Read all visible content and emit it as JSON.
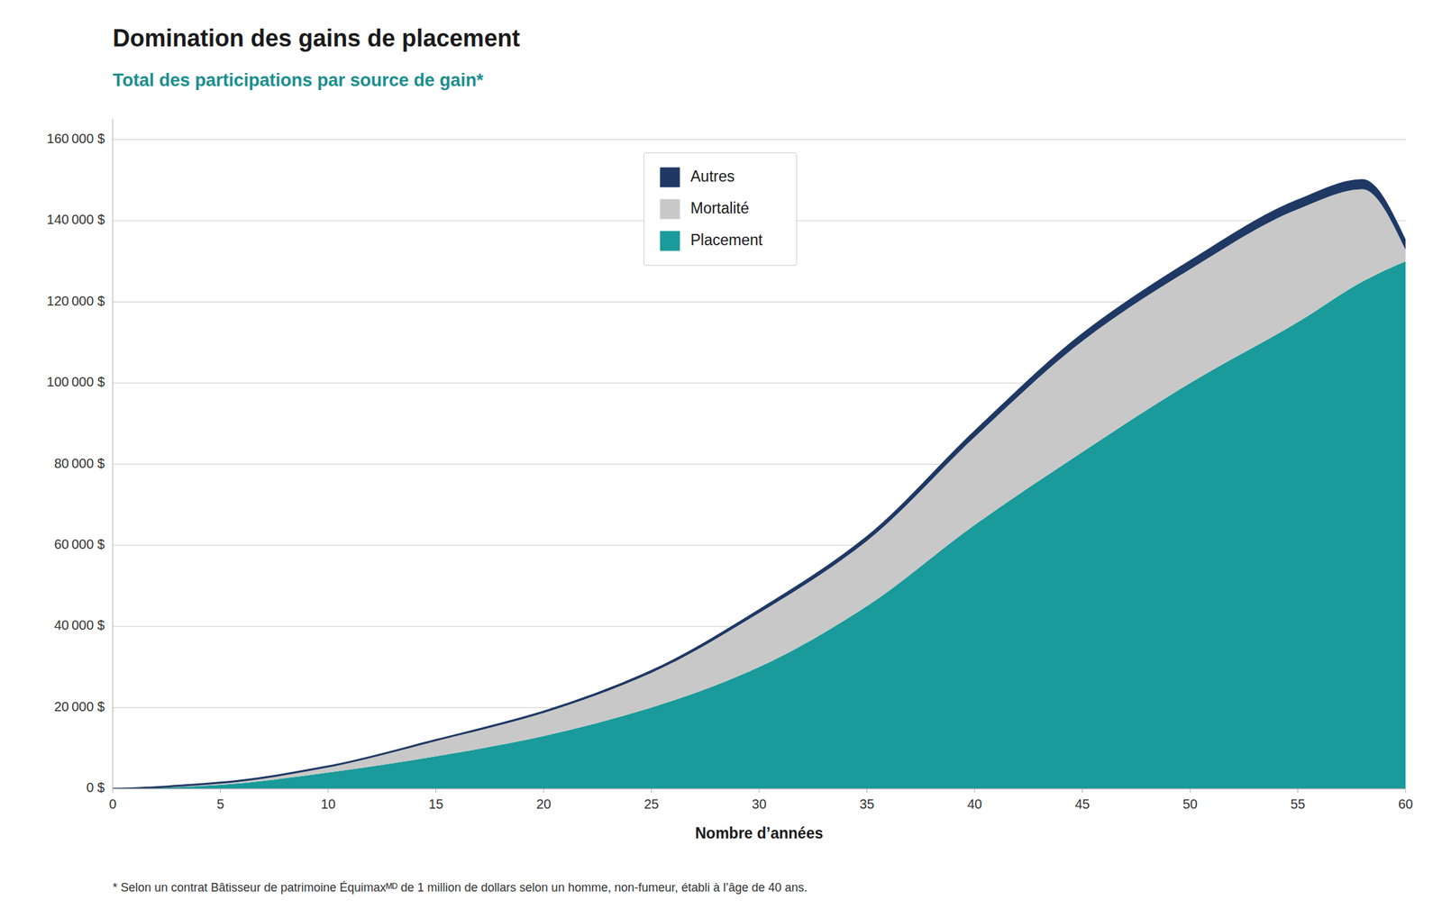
{
  "chart_data": {
    "type": "area",
    "stacked": true,
    "title": "Domination des gains de placement",
    "subtitle": "Total des participations par source de gain*",
    "x_label": "Nombre d’années",
    "footnote": "* Selon un contrat Bâtisseur de patrimoine Équimaxᴹᴰ de 1 million de dollars selon un homme, non-fumeur, établi à l’âge de 40 ans.",
    "x": [
      0,
      5,
      10,
      15,
      20,
      25,
      30,
      35,
      40,
      45,
      50,
      55,
      58,
      60
    ],
    "series": [
      {
        "name": "Placement",
        "color": "#1a9a9a",
        "values": [
          0,
          1000,
          4000,
          8000,
          13000,
          20000,
          30000,
          45000,
          65000,
          83000,
          100000,
          115000,
          125000,
          130000
        ]
      },
      {
        "name": "Mortalité",
        "color": "#c8c8c8",
        "values": [
          0,
          477.5,
          1417.5,
          3820,
          5715,
          8565,
          13340,
          16070,
          21680,
          27320,
          28050,
          27825,
          22750,
          2850
        ]
      },
      {
        "name": "Autres",
        "color": "#1f3864",
        "values": [
          0,
          22.5,
          82.5,
          180,
          285,
          435,
          660,
          930,
          1320,
          1680,
          1950,
          2175,
          2250,
          2025
        ]
      }
    ],
    "xlim": [
      0,
      60
    ],
    "xticks": [
      0,
      5,
      10,
      15,
      20,
      25,
      30,
      35,
      40,
      45,
      50,
      55,
      60
    ],
    "ylim": [
      0,
      165000
    ],
    "yticks": [
      {
        "value": 0,
        "label": "0 $"
      },
      {
        "value": 20000,
        "label": "20 000 $"
      },
      {
        "value": 40000,
        "label": "40 000 $"
      },
      {
        "value": 60000,
        "label": "60 000 $"
      },
      {
        "value": 80000,
        "label": "80 000 $"
      },
      {
        "value": 100000,
        "label": "100 000 $"
      },
      {
        "value": 120000,
        "label": "120 000 $"
      },
      {
        "value": 140000,
        "label": "140 000 $"
      },
      {
        "value": 160000,
        "label": "160 000 $"
      }
    ],
    "grid": true,
    "legend": "top"
  }
}
